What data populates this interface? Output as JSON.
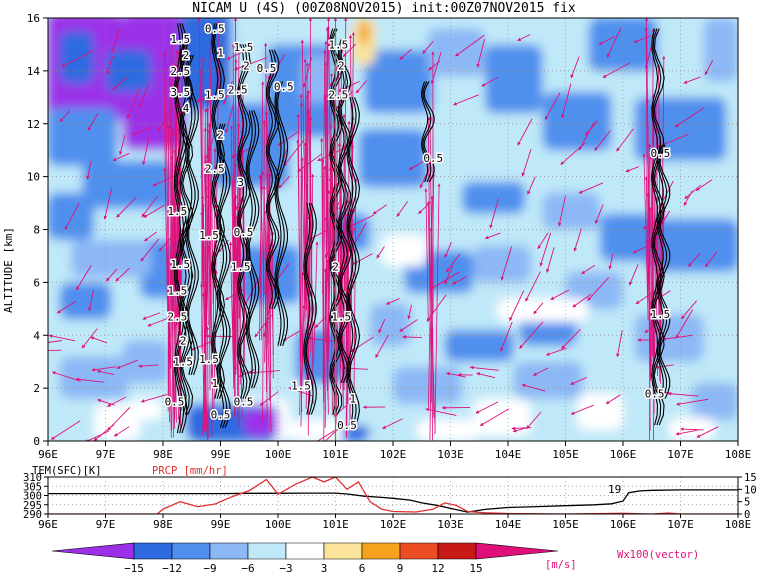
{
  "title": "NICAM U (4S) (00Z08NOV2015) init:00Z07NOV2015 fix",
  "colors": {
    "vector": "#e0107a",
    "contour": "#000000",
    "prcp": "#e03030",
    "temp": "#000000",
    "dotgrid": "#909090"
  },
  "chart_data": [
    {
      "type": "heatmap",
      "title": "NICAM U (4S) (00Z08NOV2015) init:00Z07NOV2015 fix",
      "xlabel": "",
      "ylabel": "ALTITUDE [km]",
      "xlim": [
        96,
        108
      ],
      "ylim": [
        0,
        16
      ],
      "xtick_labels": [
        "96E",
        "97E",
        "98E",
        "99E",
        "100E",
        "101E",
        "102E",
        "103E",
        "104E",
        "105E",
        "106E",
        "107E",
        "108E"
      ],
      "ytick_labels": [
        "0",
        "2",
        "4",
        "6",
        "8",
        "10",
        "12",
        "14",
        "16"
      ],
      "yticks": [
        0,
        2,
        4,
        6,
        8,
        10,
        12,
        14,
        16
      ],
      "contour_labels": [
        {
          "text": "1.5",
          "x": 98.3,
          "y": 15.2
        },
        {
          "text": "0.5",
          "x": 98.9,
          "y": 15.6
        },
        {
          "text": "2",
          "x": 98.4,
          "y": 14.6
        },
        {
          "text": "1",
          "x": 99.0,
          "y": 14.7
        },
        {
          "text": "1.5",
          "x": 99.4,
          "y": 14.9
        },
        {
          "text": "2.5",
          "x": 98.3,
          "y": 14.0
        },
        {
          "text": "2",
          "x": 99.45,
          "y": 14.2
        },
        {
          "text": "0.5",
          "x": 99.8,
          "y": 14.1
        },
        {
          "text": "3.5",
          "x": 98.3,
          "y": 13.2
        },
        {
          "text": "1.5",
          "x": 98.9,
          "y": 13.1
        },
        {
          "text": "2.5",
          "x": 99.3,
          "y": 13.3
        },
        {
          "text": "0.5",
          "x": 100.1,
          "y": 13.4
        },
        {
          "text": "4",
          "x": 98.4,
          "y": 12.6
        },
        {
          "text": "1.5",
          "x": 101.05,
          "y": 15.0
        },
        {
          "text": "2",
          "x": 101.1,
          "y": 14.2
        },
        {
          "text": "2.5",
          "x": 101.05,
          "y": 13.1
        },
        {
          "text": "2",
          "x": 99.0,
          "y": 11.6
        },
        {
          "text": "2.5",
          "x": 98.9,
          "y": 10.3
        },
        {
          "text": "3",
          "x": 99.35,
          "y": 9.8
        },
        {
          "text": "0.5",
          "x": 102.7,
          "y": 10.7
        },
        {
          "text": "1.5",
          "x": 98.25,
          "y": 8.7
        },
        {
          "text": "0.5",
          "x": 99.4,
          "y": 7.9
        },
        {
          "text": "1.5",
          "x": 98.8,
          "y": 7.8
        },
        {
          "text": "1.5",
          "x": 98.3,
          "y": 6.7
        },
        {
          "text": "1.5",
          "x": 99.35,
          "y": 6.6
        },
        {
          "text": "2",
          "x": 101.0,
          "y": 6.6
        },
        {
          "text": "1.5",
          "x": 98.25,
          "y": 5.7
        },
        {
          "text": "2.5",
          "x": 98.25,
          "y": 4.7
        },
        {
          "text": "1.5",
          "x": 101.1,
          "y": 4.7
        },
        {
          "text": "2",
          "x": 98.35,
          "y": 3.8
        },
        {
          "text": "1.5",
          "x": 98.35,
          "y": 3.0
        },
        {
          "text": "1.5",
          "x": 98.8,
          "y": 3.1
        },
        {
          "text": "0.5",
          "x": 98.2,
          "y": 1.5
        },
        {
          "text": "1",
          "x": 98.9,
          "y": 2.2
        },
        {
          "text": "0.5",
          "x": 99.0,
          "y": 1.0
        },
        {
          "text": "0.5",
          "x": 99.4,
          "y": 1.5
        },
        {
          "text": "1.5",
          "x": 100.4,
          "y": 2.1
        },
        {
          "text": "1",
          "x": 101.3,
          "y": 1.6
        },
        {
          "text": "0.5",
          "x": 101.2,
          "y": 0.6
        },
        {
          "text": "0.5",
          "x": 106.65,
          "y": 10.9
        },
        {
          "text": "1.5",
          "x": 106.65,
          "y": 4.8
        },
        {
          "text": "0.5",
          "x": 106.55,
          "y": 1.8
        }
      ],
      "shaded_levels": [
        -15,
        -12,
        -9,
        -6,
        -3,
        3,
        6,
        9,
        12,
        15
      ],
      "shade_colors": [
        "#9b30e8",
        "#2e6be0",
        "#4f8fee",
        "#8cb8f5",
        "#bfe8f8",
        "#ffffff",
        "#fbe49a",
        "#f6a21e",
        "#ec4d22",
        "#c81818",
        "#e0107a"
      ],
      "colorbar_labels": [
        "−15",
        "−12",
        "−9",
        "−6",
        "−3",
        "3",
        "6",
        "9",
        "12",
        "15"
      ],
      "colorbar_unit": "[m/s]",
      "vector_label": "Wx100(vector)"
    },
    {
      "type": "line",
      "xlim": [
        96,
        108
      ],
      "series_labels": [
        "TEM(SFC)[K]",
        "PRCP [mm/hr]"
      ],
      "left_ytick_labels": [
        "310",
        "305",
        "300",
        "295",
        "290"
      ],
      "left_yticks": [
        310,
        305,
        300,
        295,
        290
      ],
      "right_ytick_labels": [
        "15",
        "10",
        "5",
        "0"
      ],
      "right_yticks": [
        15,
        10,
        5,
        0
      ],
      "left_ylim": [
        290,
        310
      ],
      "right_ylim": [
        0,
        15
      ],
      "xtick_labels": [
        "96E",
        "97E",
        "98E",
        "99E",
        "100E",
        "101E",
        "102E",
        "103E",
        "104E",
        "105E",
        "106E",
        "107E",
        "108E"
      ],
      "point_label": "19",
      "series": [
        {
          "name": "TEM(SFC)[K]",
          "axis": "left",
          "x": [
            96,
            96.5,
            97,
            97.5,
            98,
            98.5,
            99,
            99.5,
            100,
            100.5,
            101,
            101.2,
            101.5,
            101.8,
            102,
            102.3,
            102.5,
            102.8,
            103,
            103.3,
            103.6,
            104,
            104.5,
            105,
            105.5,
            105.8,
            106,
            106.1,
            106.3,
            106.5,
            107,
            107.5,
            108
          ],
          "y": [
            301,
            301,
            301,
            301,
            301,
            301,
            301,
            301.2,
            301.2,
            301.3,
            301.3,
            300.8,
            299.6,
            299,
            298.5,
            297.5,
            296,
            294.5,
            293,
            291,
            292.5,
            293.5,
            294,
            294.5,
            295,
            295.5,
            297,
            301.5,
            302.5,
            302.8,
            303,
            303,
            303
          ]
        },
        {
          "name": "PRCP [mm/hr]",
          "axis": "right",
          "x": [
            96,
            97,
            97.9,
            98,
            98.3,
            98.6,
            98.9,
            99.2,
            99.5,
            99.8,
            100,
            100.3,
            100.6,
            100.8,
            101,
            101.2,
            101.4,
            101.6,
            101.8,
            102,
            102.4,
            102.7,
            102.9,
            103.1,
            103.3,
            103.6,
            104,
            105,
            106,
            106.5,
            106.8,
            107,
            108
          ],
          "y": [
            0,
            0,
            0,
            2,
            5,
            3,
            4,
            7,
            9.5,
            14,
            8,
            12,
            15,
            13,
            15,
            10,
            13,
            5,
            2,
            1,
            0.8,
            2,
            4.5,
            3.5,
            1,
            0.5,
            0.2,
            0,
            0.3,
            0,
            0.4,
            0,
            0
          ]
        }
      ]
    }
  ]
}
